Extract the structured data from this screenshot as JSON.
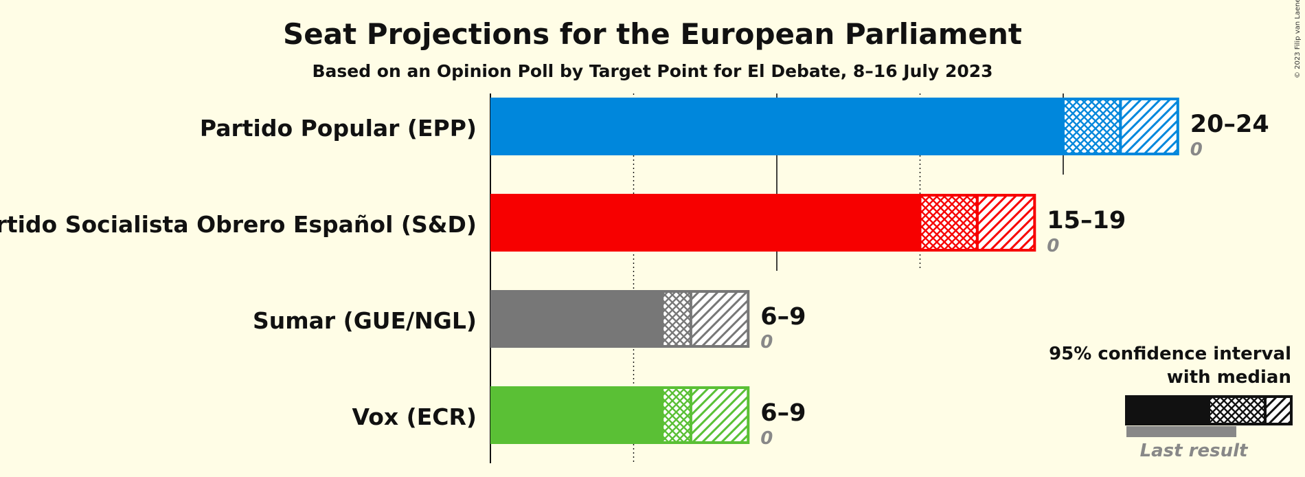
{
  "title": "Seat Projections for the European Parliament",
  "subtitle": "Based on an Opinion Poll by Target Point for El Debate, 8–16 July 2023",
  "copyright": "© 2023 Filip van Laenen",
  "legend": {
    "line1": "95% confidence interval",
    "line2": "with median",
    "last_result": "Last result"
  },
  "chart_data": {
    "type": "bar",
    "orientation": "horizontal",
    "title": "Seat Projections for the European Parliament",
    "subtitle": "Based on an Opinion Poll by Target Point for El Debate, 8–16 July 2023",
    "x_range": [
      0,
      25
    ],
    "gridlines": [
      5,
      10,
      15,
      20
    ],
    "categories": [
      "Partido Popular (EPP)",
      "Partido Socialista Obrero Español (S&D)",
      "Sumar (GUE/NGL)",
      "Vox (ECR)"
    ],
    "series": [
      {
        "category": "Partido Popular (EPP)",
        "low": 20,
        "median": 22,
        "high": 24,
        "range_label": "20–24",
        "last_result": 0,
        "color": "#0087DC"
      },
      {
        "category": "Partido Socialista Obrero Español (S&D)",
        "low": 15,
        "median": 17,
        "high": 19,
        "range_label": "15–19",
        "last_result": 0,
        "color": "#F70000"
      },
      {
        "category": "Sumar (GUE/NGL)",
        "low": 6,
        "median": 7,
        "high": 9,
        "range_label": "6–9",
        "last_result": 0,
        "color": "#777777"
      },
      {
        "category": "Vox (ECR)",
        "low": 6,
        "median": 7,
        "high": 9,
        "range_label": "6–9",
        "last_result": 0,
        "color": "#5AC035"
      }
    ]
  }
}
